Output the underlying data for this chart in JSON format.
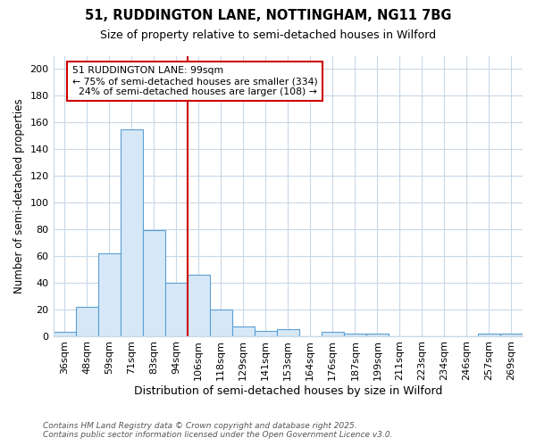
{
  "title1": "51, RUDDINGTON LANE, NOTTINGHAM, NG11 7BG",
  "title2": "Size of property relative to semi-detached houses in Wilford",
  "xlabel": "Distribution of semi-detached houses by size in Wilford",
  "ylabel": "Number of semi-detached properties",
  "categories": [
    "36sqm",
    "48sqm",
    "59sqm",
    "71sqm",
    "83sqm",
    "94sqm",
    "106sqm",
    "118sqm",
    "129sqm",
    "141sqm",
    "153sqm",
    "164sqm",
    "176sqm",
    "187sqm",
    "199sqm",
    "211sqm",
    "223sqm",
    "234sqm",
    "246sqm",
    "257sqm",
    "269sqm"
  ],
  "values": [
    3,
    22,
    62,
    155,
    79,
    40,
    46,
    20,
    7,
    4,
    5,
    0,
    3,
    2,
    2,
    0,
    0,
    0,
    0,
    2,
    2
  ],
  "bar_color": "#d6e8f7",
  "bar_edge_color": "#5a9fd4",
  "vline_color": "#cc0000",
  "annotation_box_color": "#cc0000",
  "ylim": [
    0,
    210
  ],
  "yticks": [
    0,
    20,
    40,
    60,
    80,
    100,
    120,
    140,
    160,
    180,
    200
  ],
  "property_label": "51 RUDDINGTON LANE: 99sqm",
  "pct_smaller": 75,
  "n_smaller": 334,
  "pct_larger": 24,
  "n_larger": 108,
  "footnote1": "Contains HM Land Registry data © Crown copyright and database right 2025.",
  "footnote2": "Contains public sector information licensed under the Open Government Licence v3.0.",
  "bg_color": "#ffffff",
  "grid_color": "#c8d8e8",
  "vline_x": 5.5
}
